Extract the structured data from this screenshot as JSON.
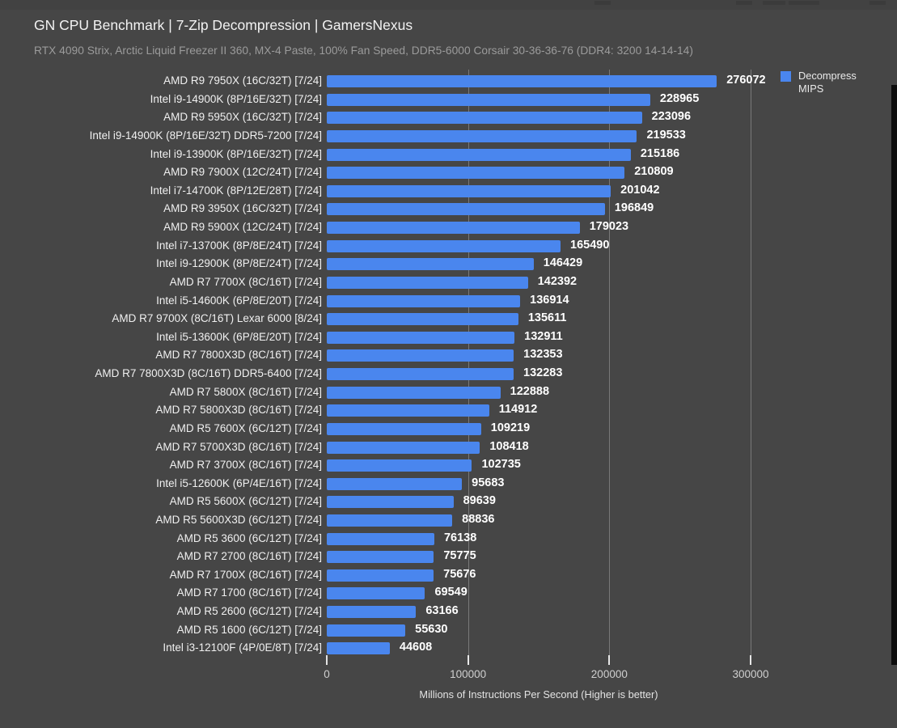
{
  "header": {
    "title": "GN CPU Benchmark | 7-Zip Decompression | GamersNexus",
    "subtitle": "RTX 4090 Strix, Arctic Liquid Freezer II 360, MX-4 Paste, 100% Fan Speed, DDR5-6000 Corsair 30-36-36-76 (DDR4: 3200 14-14-14)"
  },
  "legend": {
    "label_line1": "Decompress",
    "label_line2": "MIPS",
    "swatch_color": "#4a86ee"
  },
  "chart_data": {
    "type": "bar",
    "orientation": "horizontal",
    "title": "GN CPU Benchmark | 7-Zip Decompression | GamersNexus",
    "subtitle": "RTX 4090 Strix, Arctic Liquid Freezer II 360, MX-4 Paste, 100% Fan Speed, DDR5-6000 Corsair 30-36-36-76 (DDR4: 3200 14-14-14)",
    "series_name": "Decompress MIPS",
    "bar_color": "#4a86ee",
    "grid": "vertical",
    "legend_position": "top-right",
    "xlabel": "Millions of Instructions Per Second (Higher is better)",
    "xlim": [
      0,
      400000
    ],
    "x_ticks": [
      0,
      100000,
      200000,
      300000
    ],
    "categories": [
      "AMD R9 7950X (16C/32T) [7/24]",
      "Intel i9-14900K (8P/16E/32T) [7/24]",
      "AMD R9 5950X (16C/32T) [7/24]",
      "Intel i9-14900K (8P/16E/32T) DDR5-7200 [7/24]",
      "Intel i9-13900K (8P/16E/32T) [7/24]",
      "AMD R9 7900X (12C/24T) [7/24]",
      "Intel i7-14700K (8P/12E/28T) [7/24]",
      "AMD R9 3950X (16C/32T) [7/24]",
      "AMD R9 5900X (12C/24T) [7/24]",
      "Intel i7-13700K (8P/8E/24T) [7/24]",
      "Intel i9-12900K (8P/8E/24T) [7/24]",
      "AMD R7 7700X (8C/16T) [7/24]",
      "Intel i5-14600K (6P/8E/20T) [7/24]",
      "AMD R7 9700X (8C/16T) Lexar 6000 [8/24]",
      "Intel i5-13600K (6P/8E/20T) [7/24]",
      "AMD R7 7800X3D (8C/16T) [7/24]",
      "AMD R7 7800X3D (8C/16T) DDR5-6400 [7/24]",
      "AMD R7 5800X (8C/16T) [7/24]",
      "AMD R7 5800X3D (8C/16T) [7/24]",
      "AMD R5 7600X (6C/12T) [7/24]",
      "AMD R7 5700X3D (8C/16T) [7/24]",
      "AMD R7 3700X (8C/16T) [7/24]",
      "Intel i5-12600K (6P/4E/16T) [7/24]",
      "AMD R5 5600X (6C/12T) [7/24]",
      "AMD R5 5600X3D (6C/12T) [7/24]",
      "AMD R5 3600 (6C/12T) [7/24]",
      "AMD R7 2700 (8C/16T) [7/24]",
      "AMD R7 1700X (8C/16T) [7/24]",
      "AMD R7 1700 (8C/16T) [7/24]",
      "AMD R5 2600 (6C/12T) [7/24]",
      "AMD R5 1600 (6C/12T) [7/24]",
      "Intel i3-12100F (4P/0E/8T) [7/24]"
    ],
    "values": [
      276072,
      228965,
      223096,
      219533,
      215186,
      210809,
      201042,
      196849,
      179023,
      165490,
      146429,
      142392,
      136914,
      135611,
      132911,
      132353,
      132283,
      122888,
      114912,
      109219,
      108418,
      102735,
      95683,
      89639,
      88836,
      76138,
      75775,
      75676,
      69549,
      63166,
      55630,
      44608
    ]
  }
}
